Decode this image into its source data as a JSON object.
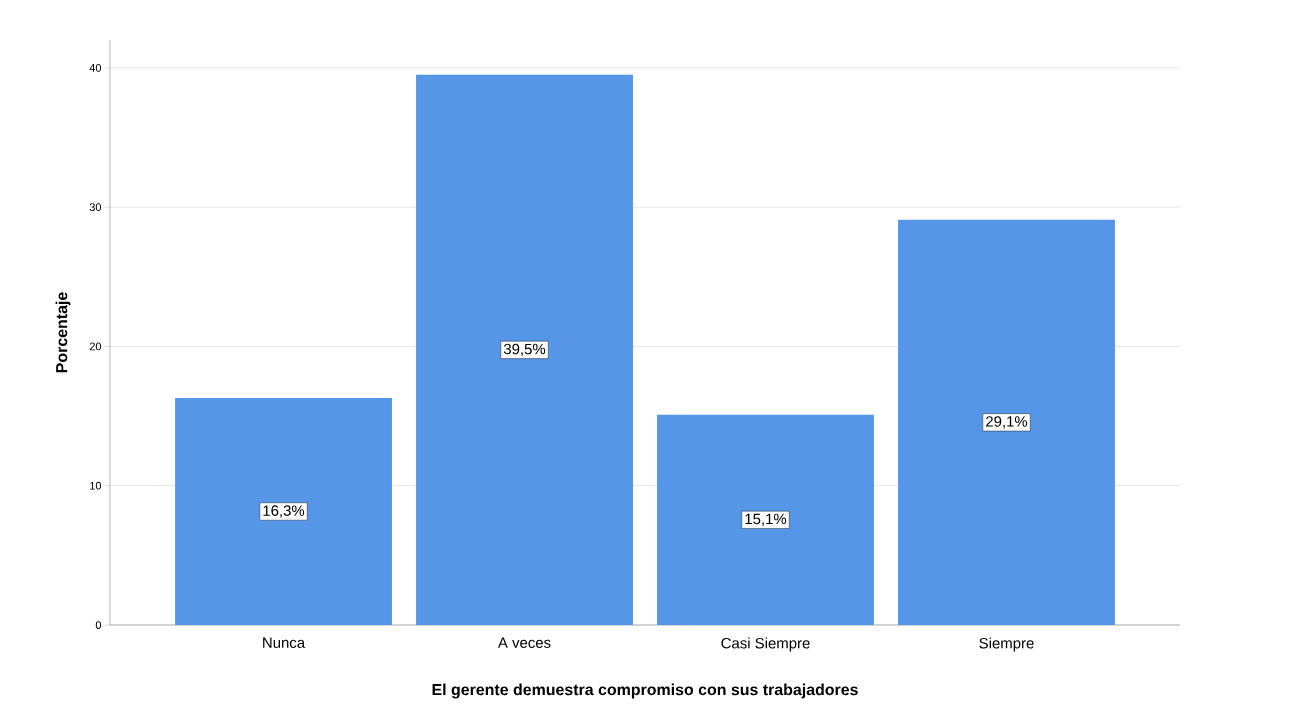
{
  "chart_data": {
    "type": "bar",
    "xlabel": "El gerente demuestra compromiso con sus trabajadores",
    "ylabel": "Porcentaje",
    "categories": [
      "Nunca",
      "A veces",
      "Casi Siempre",
      "Siempre"
    ],
    "values": [
      16.3,
      39.5,
      15.1,
      29.1
    ],
    "value_labels": [
      "16,3%",
      "39,5%",
      "15,1%",
      "29,1%"
    ],
    "color": "#5596e6",
    "ylim": [
      0,
      42
    ],
    "yticks": [
      0,
      10,
      20,
      30,
      40
    ],
    "grid": "y"
  }
}
